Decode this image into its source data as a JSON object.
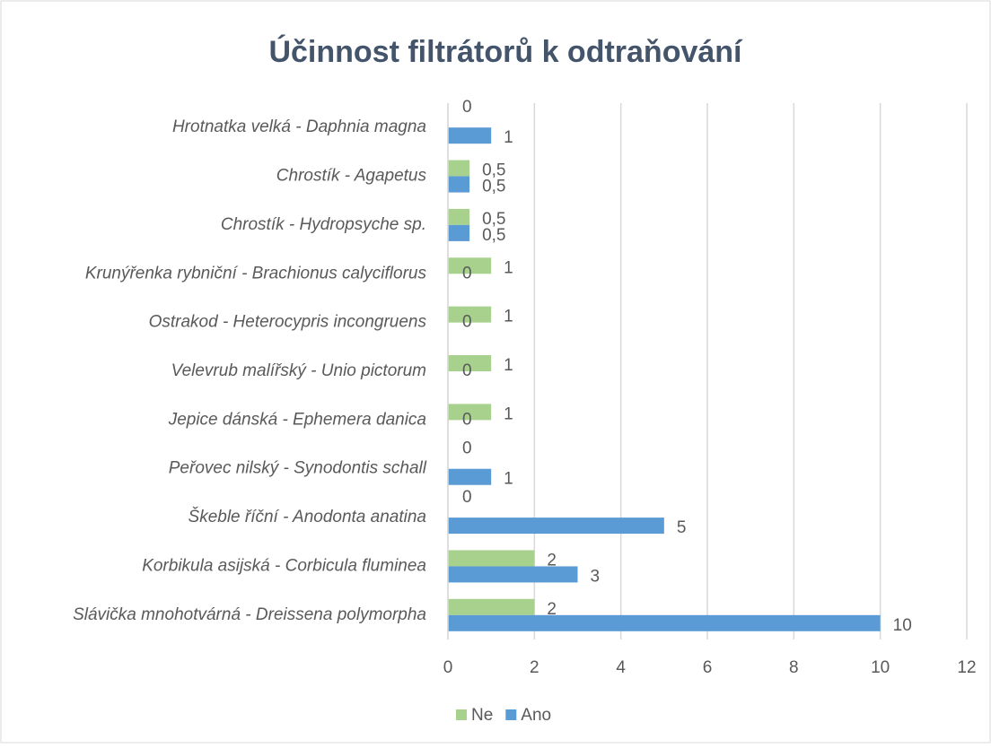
{
  "chart_data": {
    "type": "bar",
    "orientation": "horizontal",
    "title": "Účinnost filtrátorů k odtraňování",
    "categories": [
      "Hrotnatka velká - Daphnia magna",
      "Chrostík - Agapetus",
      "Chrostík - Hydropsyche sp.",
      "Krunýřenka rybniční - Brachionus calyciflorus",
      "Ostrakod - Heterocypris incongruens",
      "Velevrub malířský - Unio pictorum",
      "Jepice dánská - Ephemera danica",
      "Peřovec nilský - Synodontis schall",
      "Škeble říční - Anodonta anatina",
      "Korbikula asijská - Corbicula fluminea",
      "Slávička mnohotvárná - Dreissena polymorpha"
    ],
    "series": [
      {
        "name": "Ne",
        "color": "#a9d18e",
        "values": [
          0,
          0.5,
          0.5,
          1,
          1,
          1,
          1,
          0,
          0,
          2,
          2
        ],
        "value_labels": [
          "0",
          "0,5",
          "0,5",
          "1",
          "1",
          "1",
          "1",
          "0",
          "0",
          "2",
          "2"
        ]
      },
      {
        "name": "Ano",
        "color": "#5b9bd5",
        "values": [
          1,
          0.5,
          0.5,
          0,
          0,
          0,
          0,
          1,
          5,
          3,
          10
        ],
        "value_labels": [
          "1",
          "0,5",
          "0,5",
          "0",
          "0",
          "0",
          "0",
          "1",
          "5",
          "3",
          "10"
        ]
      }
    ],
    "xlim": [
      0,
      12
    ],
    "xticks": [
      0,
      2,
      4,
      6,
      8,
      10,
      12
    ],
    "grid": true,
    "legend": "bottom"
  }
}
